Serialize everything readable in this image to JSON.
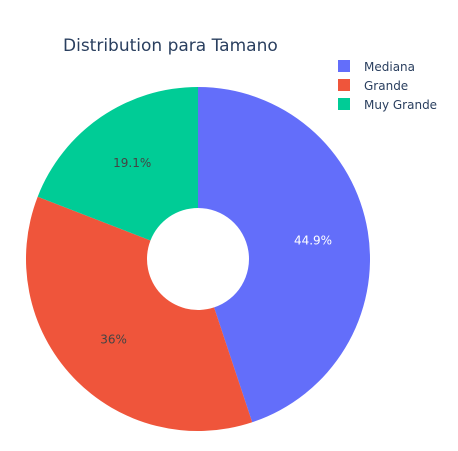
{
  "chart_data": {
    "type": "pie",
    "title": "Distribution para Tamano",
    "hole": true,
    "legend_position": "top-right",
    "labels": [
      "Mediana",
      "Grande",
      "Muy Grande"
    ],
    "values": [
      44.9,
      36.0,
      19.1
    ],
    "percent_labels": [
      "44.9%",
      "36%",
      "19.1%"
    ],
    "colors": [
      "#636efa",
      "#ef553b",
      "#00cc96"
    ],
    "label_colors": [
      "#ffffff",
      "#444444",
      "#444444"
    ]
  }
}
